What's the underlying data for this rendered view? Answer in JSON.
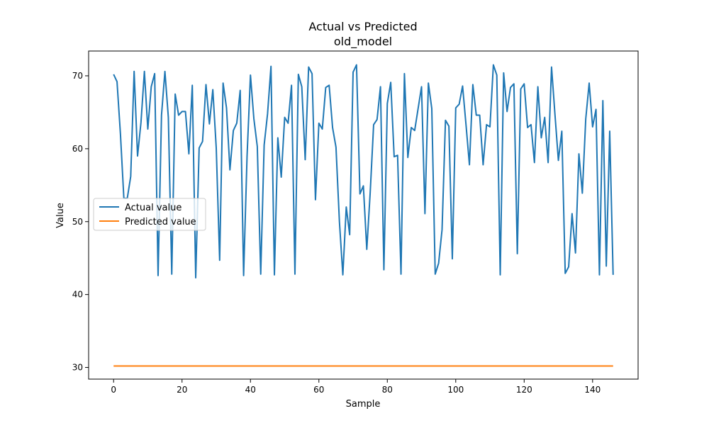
{
  "chart_data": {
    "type": "line",
    "title": "Actual vs Predicted",
    "subtitle": "old_model",
    "xlabel": "Sample",
    "ylabel": "Value",
    "xlim": [
      -7.3,
      153.3
    ],
    "ylim": [
      28.4,
      73.4
    ],
    "xticks": [
      0,
      20,
      40,
      60,
      80,
      100,
      120,
      140
    ],
    "yticks": [
      30,
      40,
      50,
      60,
      70
    ],
    "grid": false,
    "legend_position": "center-left",
    "series": [
      {
        "name": "Actual value",
        "color": "#1f77b4",
        "values": [
          70.2,
          69.2,
          62.0,
          53.2,
          53.2,
          56.2,
          70.6,
          59.0,
          63.6,
          70.6,
          62.7,
          68.5,
          70.3,
          42.6,
          64.6,
          70.6,
          64.3,
          42.8,
          67.5,
          64.6,
          65.1,
          65.1,
          59.3,
          68.7,
          42.3,
          60.1,
          61.0,
          68.8,
          63.4,
          68.1,
          60.1,
          44.7,
          69.0,
          65.6,
          57.1,
          62.5,
          63.5,
          68.0,
          42.6,
          58.9,
          70.1,
          64.1,
          60.3,
          42.8,
          60.5,
          64.8,
          71.3,
          42.7,
          61.5,
          56.1,
          64.3,
          63.5,
          68.7,
          42.8,
          70.2,
          68.5,
          58.5,
          71.2,
          70.3,
          53.0,
          63.5,
          62.7,
          68.4,
          68.7,
          62.9,
          60.2,
          50.0,
          42.7,
          52.0,
          48.2,
          70.5,
          71.5,
          53.8,
          54.9,
          46.2,
          54.0,
          63.3,
          64.0,
          68.5,
          43.4,
          66.2,
          69.1,
          58.9,
          59.1,
          42.8,
          70.3,
          58.8,
          62.9,
          62.5,
          65.5,
          68.5,
          51.1,
          69.0,
          65.5,
          42.8,
          44.3,
          48.9,
          63.9,
          63.1,
          44.9,
          65.6,
          66.1,
          68.6,
          63.3,
          57.8,
          68.8,
          64.6,
          64.6,
          57.8,
          63.3,
          63.0,
          71.5,
          70.1,
          42.7,
          70.4,
          65.1,
          68.4,
          68.9,
          45.6,
          68.2,
          68.9,
          62.9,
          63.3,
          58.1,
          68.5,
          61.5,
          64.3,
          58.1,
          71.2,
          64.7,
          58.4,
          62.4,
          42.9,
          43.8,
          51.1,
          45.7,
          59.3,
          53.9,
          64.1,
          69.0,
          63.0,
          65.4,
          42.7,
          66.6,
          43.9,
          62.4,
          42.7
        ]
      },
      {
        "name": "Predicted value",
        "color": "#ff7f0e",
        "constant": 30.2,
        "x_range": [
          0,
          146
        ]
      }
    ]
  }
}
